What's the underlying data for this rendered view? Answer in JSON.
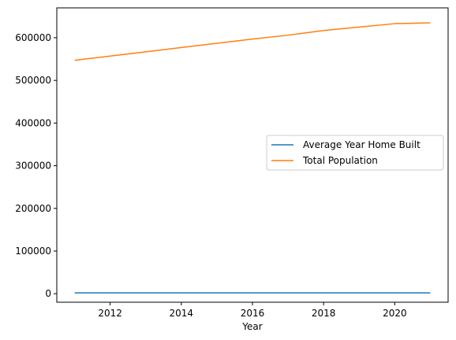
{
  "chart_data": {
    "type": "line",
    "title": "",
    "xlabel": "Year",
    "ylabel": "",
    "x": [
      2011,
      2012,
      2013,
      2014,
      2015,
      2016,
      2017,
      2018,
      2019,
      2020,
      2021
    ],
    "xlim": [
      2010.5,
      2021.5
    ],
    "ylim": [
      -20000,
      670000
    ],
    "xticks": [
      2012,
      2014,
      2016,
      2018,
      2020
    ],
    "xtick_labels": [
      "2012",
      "2014",
      "2016",
      "2018",
      "2020"
    ],
    "yticks": [
      0,
      100000,
      200000,
      300000,
      400000,
      500000,
      600000
    ],
    "ytick_labels": [
      "0",
      "100000",
      "200000",
      "300000",
      "400000",
      "500000",
      "600000"
    ],
    "grid": false,
    "legend_position": "center-right",
    "series": [
      {
        "name": "Average Year Home Built",
        "color": "#1f77b4",
        "values": [
          1960,
          1961,
          1961,
          1962,
          1962,
          1962,
          1963,
          1963,
          1963,
          1964,
          1964
        ]
      },
      {
        "name": "Total Population",
        "color": "#ff7f0e",
        "values": [
          547000,
          557000,
          567000,
          577000,
          587000,
          597000,
          606000,
          617000,
          625000,
          633000,
          635000
        ]
      }
    ]
  }
}
